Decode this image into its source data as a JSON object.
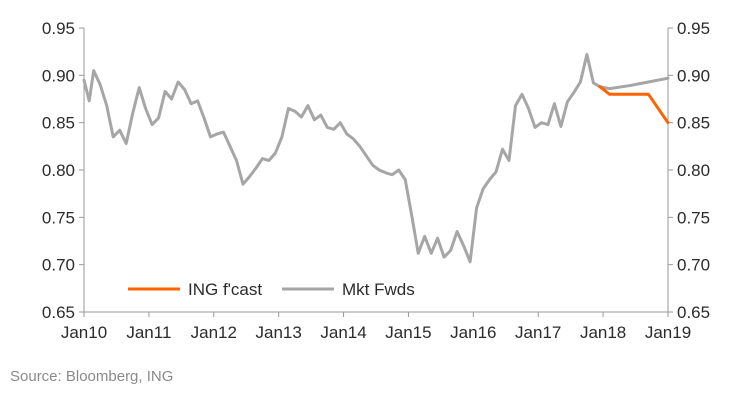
{
  "chart_data": {
    "type": "line",
    "title": "",
    "xlabel": "",
    "ylabel": "",
    "ylim": [
      0.65,
      0.95
    ],
    "y_ticks": [
      "0.65",
      "0.70",
      "0.75",
      "0.80",
      "0.85",
      "0.90",
      "0.95"
    ],
    "x_ticks": [
      "Jan10",
      "Jan11",
      "Jan12",
      "Jan13",
      "Jan14",
      "Jan15",
      "Jan16",
      "Jan17",
      "Jan18",
      "Jan19"
    ],
    "grid": false,
    "dual_axis": true,
    "legend_position": "bottom-left",
    "series": [
      {
        "name": "Mkt Fwds",
        "color": "#a6a6a6",
        "x": [
          2010.0,
          2010.08,
          2010.15,
          2010.25,
          2010.35,
          2010.45,
          2010.55,
          2010.65,
          2010.75,
          2010.85,
          2010.95,
          2011.05,
          2011.15,
          2011.25,
          2011.35,
          2011.45,
          2011.55,
          2011.65,
          2011.75,
          2011.85,
          2011.95,
          2012.05,
          2012.15,
          2012.25,
          2012.35,
          2012.45,
          2012.55,
          2012.65,
          2012.75,
          2012.85,
          2012.95,
          2013.05,
          2013.15,
          2013.25,
          2013.35,
          2013.45,
          2013.55,
          2013.65,
          2013.75,
          2013.85,
          2013.95,
          2014.05,
          2014.15,
          2014.25,
          2014.35,
          2014.45,
          2014.55,
          2014.65,
          2014.75,
          2014.85,
          2014.95,
          2015.05,
          2015.15,
          2015.25,
          2015.35,
          2015.45,
          2015.55,
          2015.65,
          2015.75,
          2015.85,
          2015.95,
          2016.05,
          2016.15,
          2016.25,
          2016.35,
          2016.45,
          2016.55,
          2016.65,
          2016.75,
          2016.85,
          2016.95,
          2017.05,
          2017.15,
          2017.25,
          2017.35,
          2017.45,
          2017.55,
          2017.65,
          2017.75,
          2017.85,
          2017.95,
          2018.1,
          2018.4,
          2018.7,
          2019.0
        ],
        "values": [
          0.895,
          0.873,
          0.905,
          0.89,
          0.868,
          0.835,
          0.842,
          0.828,
          0.86,
          0.887,
          0.865,
          0.848,
          0.855,
          0.883,
          0.875,
          0.893,
          0.885,
          0.87,
          0.873,
          0.855,
          0.835,
          0.838,
          0.84,
          0.825,
          0.81,
          0.785,
          0.793,
          0.802,
          0.812,
          0.81,
          0.818,
          0.835,
          0.865,
          0.862,
          0.856,
          0.868,
          0.853,
          0.858,
          0.845,
          0.843,
          0.85,
          0.838,
          0.833,
          0.825,
          0.815,
          0.805,
          0.8,
          0.797,
          0.795,
          0.8,
          0.79,
          0.752,
          0.712,
          0.73,
          0.712,
          0.728,
          0.708,
          0.715,
          0.735,
          0.72,
          0.703,
          0.76,
          0.78,
          0.79,
          0.798,
          0.822,
          0.81,
          0.868,
          0.88,
          0.865,
          0.845,
          0.85,
          0.848,
          0.87,
          0.846,
          0.872,
          0.882,
          0.893,
          0.922,
          0.892,
          0.888,
          0.886,
          0.889,
          0.893,
          0.897
        ]
      },
      {
        "name": "ING f'cast",
        "color": "#ff6200",
        "x": [
          2017.95,
          2018.1,
          2018.4,
          2018.7,
          2019.0
        ],
        "values": [
          0.888,
          0.88,
          0.88,
          0.88,
          0.85
        ]
      }
    ]
  },
  "source": "Source: Bloomberg, ING"
}
